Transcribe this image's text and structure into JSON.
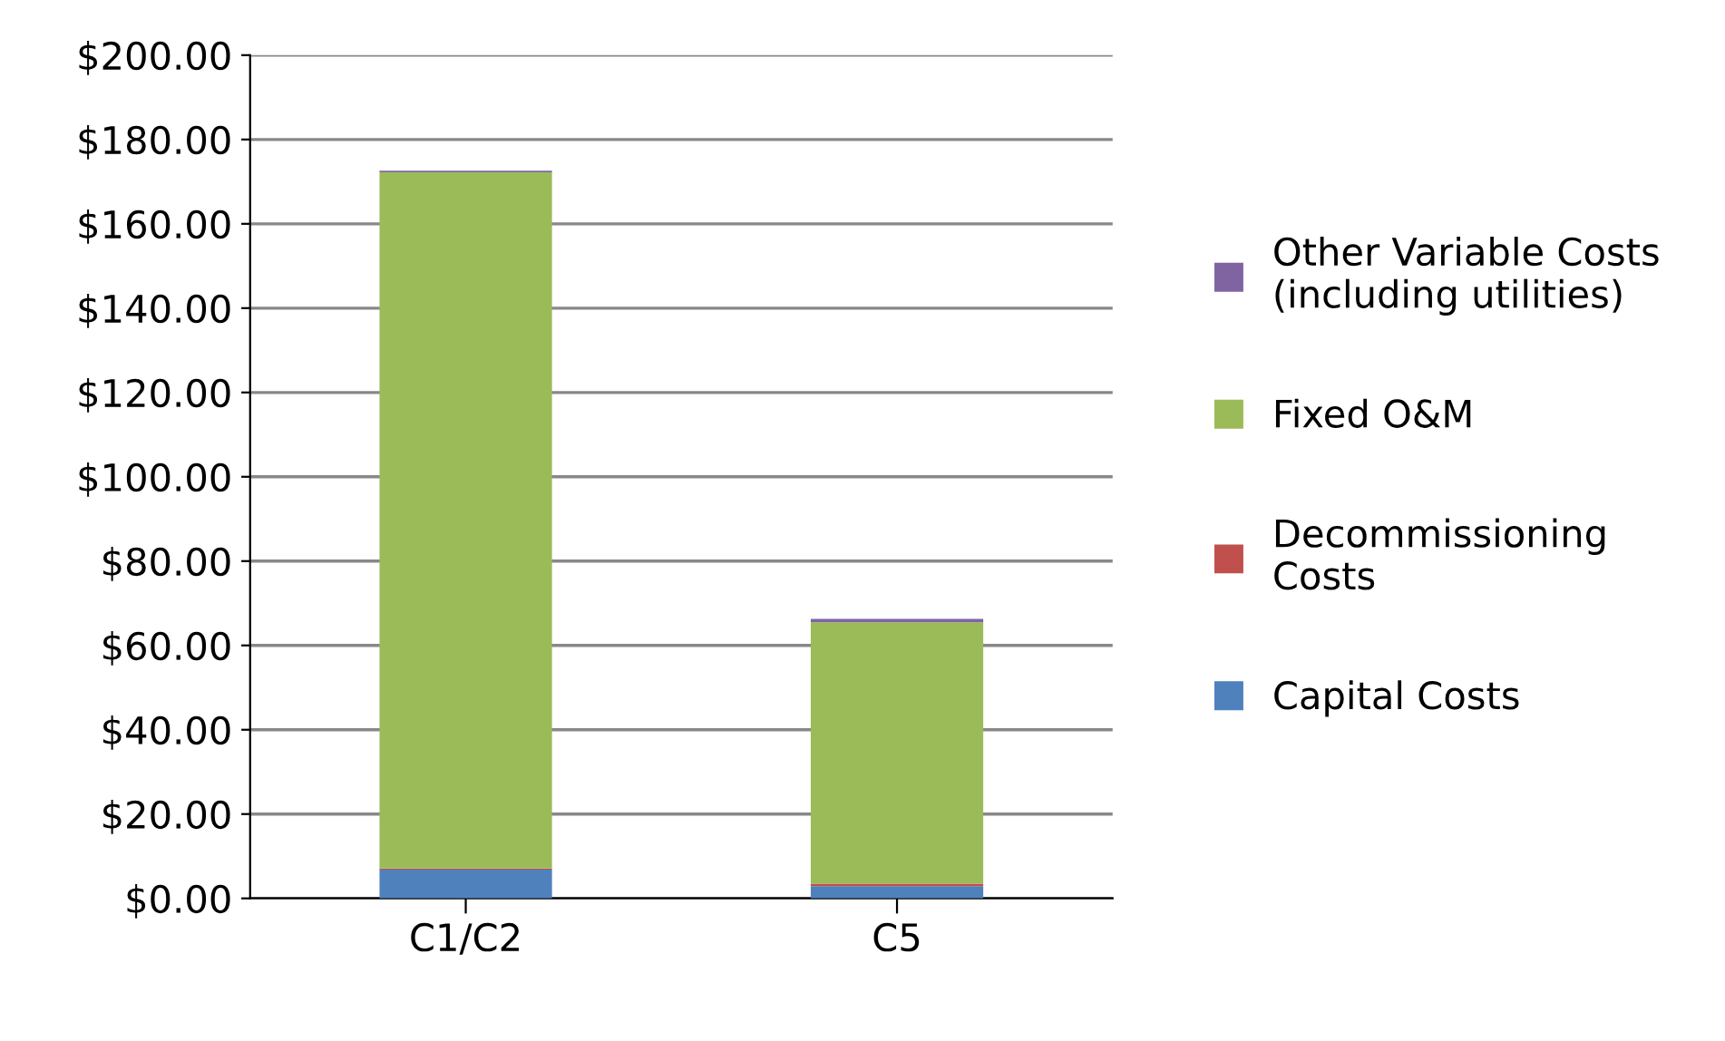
{
  "chart_data": {
    "type": "bar",
    "stacked": true,
    "categories": [
      "C1/C2",
      "C5"
    ],
    "series": [
      {
        "name": "Capital Costs",
        "color": "#4f81bd",
        "values": [
          6.8,
          2.9
        ]
      },
      {
        "name": "Decommissioning Costs",
        "color": "#c0504d",
        "values": [
          0.3,
          0.6
        ]
      },
      {
        "name": "Fixed O&M",
        "color": "#9bbb59",
        "values": [
          165.1,
          62.0
        ]
      },
      {
        "name": "Other Variable Costs (including utilities)",
        "color": "#8064a2",
        "values": [
          0.4,
          0.8
        ]
      }
    ],
    "ylim": [
      0,
      200
    ],
    "yticks": [
      {
        "value": 0,
        "label": "$0.00"
      },
      {
        "value": 20,
        "label": "$20.00"
      },
      {
        "value": 40,
        "label": "$40.00"
      },
      {
        "value": 60,
        "label": "$60.00"
      },
      {
        "value": 80,
        "label": "$80.00"
      },
      {
        "value": 100,
        "label": "$100.00"
      },
      {
        "value": 120,
        "label": "$120.00"
      },
      {
        "value": 140,
        "label": "$140.00"
      },
      {
        "value": 160,
        "label": "$160.00"
      },
      {
        "value": 180,
        "label": "$180.00"
      },
      {
        "value": 200,
        "label": "$200.00"
      }
    ],
    "grid": "y",
    "legend": "right"
  }
}
